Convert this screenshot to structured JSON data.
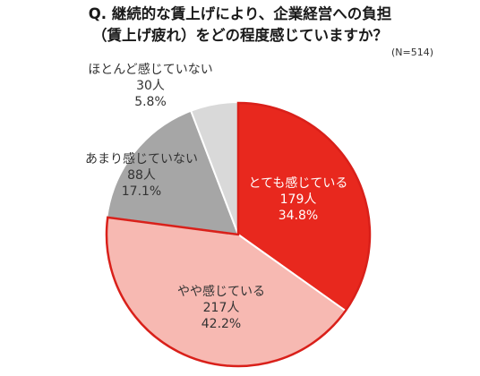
{
  "title_lines": [
    "Q. 継続的な賃上げにより、企業経営への負担",
    "（賃上げ疲れ）をどの程度感じていますか？"
  ],
  "sample_note": "(N=514)",
  "chart_data": {
    "type": "pie",
    "title": "Q. 継続的な賃上げにより、企業経営への負担（賃上げ疲れ）をどの程度感じていますか？",
    "total": 514,
    "slices": [
      {
        "label": "とても感じている",
        "count_text": "179人",
        "percent_text": "34.8%",
        "count": 179,
        "percent": 34.8,
        "color": "#e8281e",
        "text_color": "#ffffff"
      },
      {
        "label": "やや感じている",
        "count_text": "217人",
        "percent_text": "42.2%",
        "count": 217,
        "percent": 42.2,
        "color": "#f7b9b2",
        "text_color": "#333333"
      },
      {
        "label": "あまり感じていない",
        "count_text": "88人",
        "percent_text": "17.1%",
        "count": 88,
        "percent": 17.1,
        "color": "#a6a6a6",
        "text_color": "#333333"
      },
      {
        "label": "ほとんど感じていない",
        "count_text": "30人",
        "percent_text": "5.8%",
        "count": 30,
        "percent": 5.8,
        "color": "#d9d9d9",
        "text_color": "#333333"
      }
    ]
  }
}
